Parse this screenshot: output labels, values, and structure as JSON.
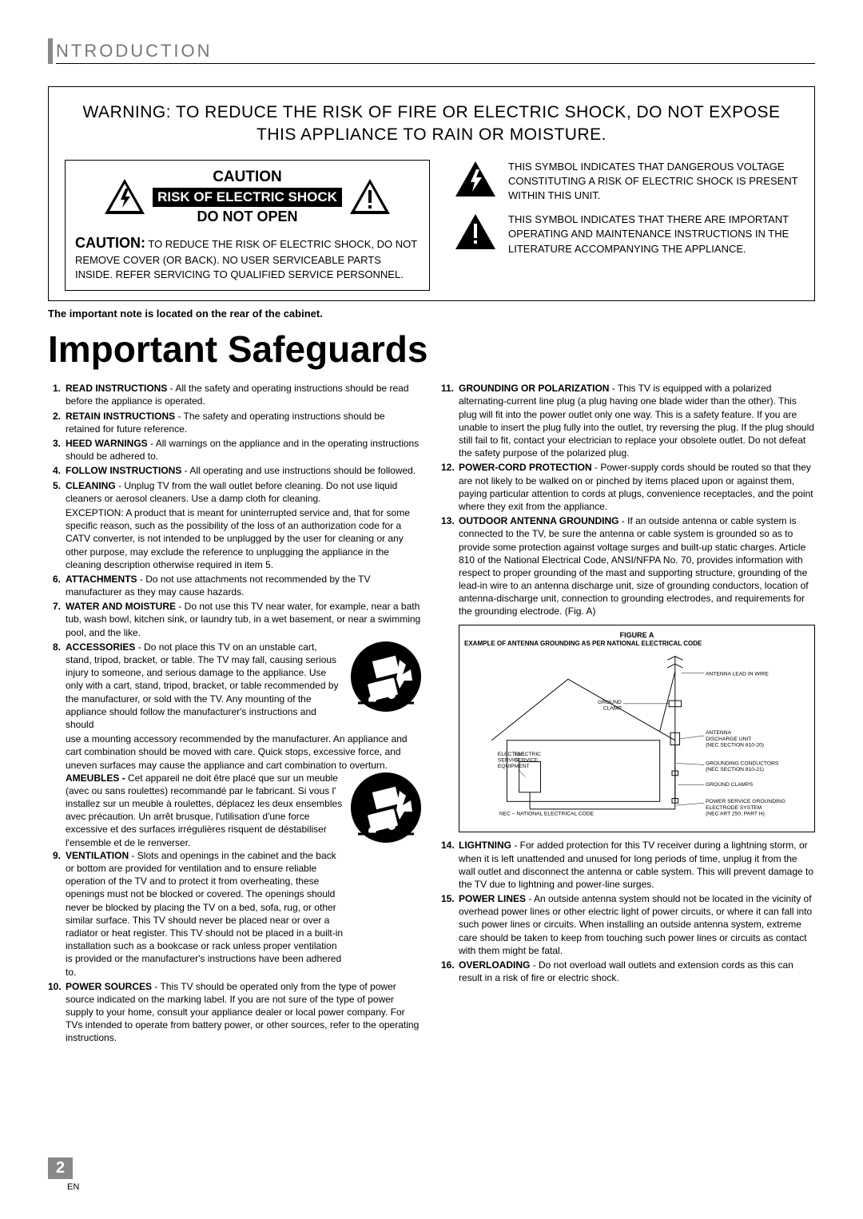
{
  "header": {
    "title": "NTRODUCTION",
    "bar_color": "#888888"
  },
  "warning_box": {
    "main_warning": "WARNING: TO REDUCE THE RISK OF FIRE OR ELECTRIC SHOCK, DO NOT EXPOSE THIS APPLIANCE TO RAIN OR MOISTURE.",
    "caution_label": "CAUTION",
    "risk_label": "RISK OF ELECTRIC SHOCK",
    "donot_label": "DO NOT OPEN",
    "caution_strong": "CAUTION:",
    "caution_body": " TO REDUCE THE RISK OF ELECTRIC SHOCK, DO NOT REMOVE COVER (OR BACK). NO USER SERVICEABLE PARTS INSIDE. REFER SERVICING TO QUALIFIED SERVICE PERSONNEL.",
    "sym1": "THIS SYMBOL INDICATES THAT DANGEROUS VOLTAGE CONSTITUTING A RISK OF ELECTRIC SHOCK IS PRESENT WITHIN THIS UNIT.",
    "sym2": "THIS SYMBOL INDICATES THAT THERE ARE IMPORTANT OPERATING AND MAINTENANCE INSTRUCTIONS IN THE LITERATURE ACCOMPANYING THE APPLIANCE."
  },
  "cabinet_note": "The important note is located on the rear of the cabinet.",
  "page_title": "Important Safeguards",
  "left": [
    {
      "n": "1.",
      "t": "READ INSTRUCTIONS",
      "b": " - All the safety and operating instructions should be read before the appliance is operated."
    },
    {
      "n": "2.",
      "t": "RETAIN INSTRUCTIONS",
      "b": " - The safety and operating instructions should be retained for future reference."
    },
    {
      "n": "3.",
      "t": "HEED WARNINGS",
      "b": " - All warnings on the appliance and in the operating instructions should be adhered to."
    },
    {
      "n": "4.",
      "t": "FOLLOW INSTRUCTIONS",
      "b": " - All operating and use instructions should be followed."
    },
    {
      "n": "5.",
      "t": "CLEANING",
      "b": " - Unplug TV from the wall outlet before cleaning. Do not use liquid cleaners or aerosol cleaners. Use a damp cloth for cleaning."
    },
    {
      "n": "",
      "t": "",
      "b": "EXCEPTION: A product that is meant for uninterrupted service and, that for some specific reason, such as the possibility of the loss of an authorization code for a CATV converter, is not intended to be unplugged by the user for cleaning or any other purpose, may exclude the reference to unplugging the appliance in the cleaning description otherwise required in item 5."
    },
    {
      "n": "6.",
      "t": "ATTACHMENTS",
      "b": " - Do not use attachments not recommended by the TV manufacturer as they may cause hazards."
    },
    {
      "n": "7.",
      "t": "WATER AND MOISTURE",
      "b": " - Do not use this TV near water, for example, near a bath tub, wash bowl, kitchen sink, or laundry tub, in a wet basement, or near a swimming pool, and the like."
    }
  ],
  "item8": {
    "n": "8.",
    "t": "ACCESSORIES",
    "b1": " - Do not place this TV on an unstable cart, stand, tripod, bracket, or table. The TV may fall, causing serious injury to someone, and serious damage to the appliance. Use only with a cart, stand, tripod, bracket, or table recommended by the manufacturer, or sold with the TV. Any mounting of the appliance should follow the manufacturer's instructions and should",
    "b2": "use a mounting accessory recommended by the manufacturer. An appliance and cart combination should be moved with care. Quick stops, excessive force, and uneven surfaces may cause the appliance and cart combination to overturn.",
    "am_t": "AMEUBLES - ",
    "am_b": "Cet appareil ne doit être placé que sur un meuble (avec ou sans roulettes) recommandé par le fabricant. Si vous l' installez sur un meuble à roulettes, déplacez les deux ensembles avec précaution. Un arrêt brusque, l'utilisation d'une force excessive et des surfaces irrégulières risquent de déstabiliser l'ensemble et de le renverser."
  },
  "left2": [
    {
      "n": "9.",
      "t": "VENTILATION",
      "b": " - Slots and openings in the cabinet and the back or bottom are provided for ventilation and to ensure reliable operation of the TV and to protect it from overheating, these openings must not be blocked or covered. The openings should never be blocked by placing the TV on a bed, sofa, rug, or other similar surface. This TV should never be placed near or over a radiator or heat register. This TV should not be placed in a built-in installation such as a bookcase or rack unless proper ventilation is provided or the manufacturer's instructions have been adhered to."
    },
    {
      "n": "10.",
      "t": "POWER SOURCES",
      "b": " - This TV should be operated only from the type of power source indicated on the marking label. If you are not sure of the type of power supply to your home, consult your appliance dealer or local power company. For TVs intended to operate from battery power, or other sources, refer to the operating instructions."
    }
  ],
  "right": [
    {
      "n": "11.",
      "t": "GROUNDING OR POLARIZATION",
      "b": " - This TV is equipped with a polarized alternating-current line plug (a plug having one blade wider than the other). This plug will fit into the power outlet only one way. This is a safety feature. If you are unable to insert the plug fully into the outlet, try reversing the plug. If the plug should still fail to fit, contact your electrician to replace your obsolete outlet. Do not defeat the safety purpose of the polarized plug."
    },
    {
      "n": "12.",
      "t": "POWER-CORD PROTECTION",
      "b": " - Power-supply cords should be routed so that they are not likely to be walked on or pinched by items placed upon or against them, paying particular attention to cords at plugs, convenience receptacles, and the point where they exit from the appliance."
    },
    {
      "n": "13.",
      "t": "OUTDOOR ANTENNA GROUNDING",
      "b": " - If an outside antenna or cable system is connected to the TV, be sure the antenna or cable system is grounded so as to provide some protection against voltage surges and built-up static charges. Article 810 of the National Electrical Code, ANSI/NFPA No. 70, provides information with respect to proper grounding of the mast and supporting structure, grounding of the lead-in wire to an antenna discharge unit, size of grounding conductors, location of antenna-discharge unit, connection to grounding electrodes, and requirements for the grounding electrode. (Fig. A)"
    }
  ],
  "figure": {
    "title": "FIGURE A",
    "sub": "EXAMPLE OF ANTENNA GROUNDING AS PER NATIONAL ELECTRICAL CODE",
    "labels": {
      "antenna": "ANTENNA LEAD IN WIRE",
      "ground_clamp": "GROUND CLAMP",
      "discharge": "ANTENNA DISCHARGE UNIT (NEC SECTION 810-20)",
      "electric": "ELECTRIC SERVICE EQUIPMENT",
      "conductors": "GROUNDING CONDUCTORS (NEC SECTION 810-21)",
      "clamps": "GROUND CLAMPS",
      "power": "POWER SERVICE GROUNDING ELECTRODE SYSTEM (NEC ART 250, PART H)",
      "nec": "NEC – NATIONAL ELECTRICAL CODE"
    }
  },
  "right2": [
    {
      "n": "14.",
      "t": "LIGHTNING",
      "b": " - For added protection for this TV receiver during a lightning storm, or when it is left unattended and unused for long periods of time, unplug it from the wall outlet and disconnect the antenna or cable system. This will prevent damage to the TV due to lightning and power-line surges."
    },
    {
      "n": "15.",
      "t": "POWER LINES",
      "b": " - An outside antenna system should not be located in the vicinity of overhead power lines or other electric light of power circuits, or where it can fall into such power lines or circuits. When installing an outside antenna system, extreme care should be taken to keep from touching such power lines or circuits as contact with them might be fatal."
    },
    {
      "n": "16.",
      "t": "OVERLOADING",
      "b": " - Do not overload wall outlets and extension cords as this can result in a risk of fire or electric shock."
    }
  ],
  "footer": {
    "page": "2",
    "lang": "EN"
  },
  "colors": {
    "accent": "#888888",
    "text": "#000000",
    "bg": "#ffffff"
  }
}
